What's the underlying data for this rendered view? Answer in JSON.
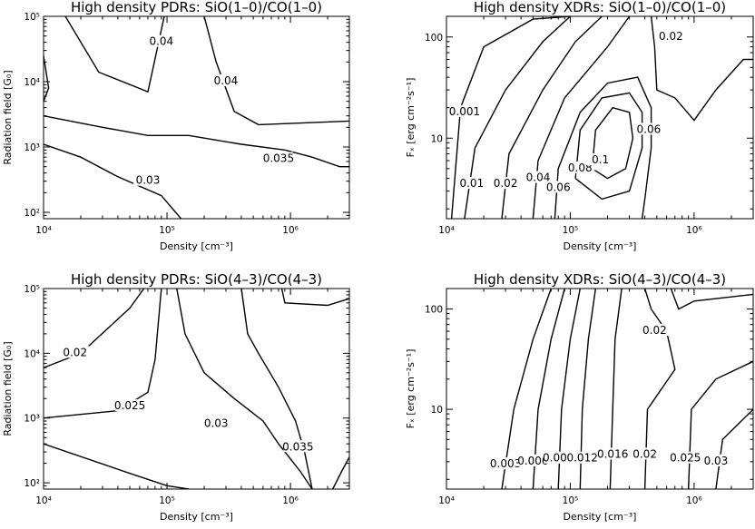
{
  "chart_data": [
    {
      "type": "contour",
      "title": "High density PDRs: SiO(1–0)/CO(1–0)",
      "xlabel": "Density [cm⁻³]",
      "ylabel": "Radiation field [G₀]",
      "xscale": "log",
      "yscale": "log",
      "xlim": [
        10000,
        3000000
      ],
      "ylim": [
        80,
        100000
      ],
      "x_ticks": [
        {
          "value": 10000,
          "label": "10⁴"
        },
        {
          "value": 100000,
          "label": "10⁵"
        },
        {
          "value": 1000000,
          "label": "10⁶"
        }
      ],
      "y_ticks": [
        {
          "value": 100,
          "label": "10²"
        },
        {
          "value": 1000,
          "label": "10³"
        },
        {
          "value": 10000,
          "label": "10⁴"
        },
        {
          "value": 100000,
          "label": "10⁵"
        }
      ],
      "contours": [
        {
          "level": "0.04",
          "label": "0.04",
          "points": [
            [
              15000,
              100000
            ],
            [
              28000,
              14000
            ],
            [
              70000,
              7000
            ],
            [
              95000,
              100000
            ]
          ],
          "label_at": [
            90000,
            40000
          ]
        },
        {
          "level": "0.04",
          "label": "0.04",
          "points": [
            [
              200000,
              100000
            ],
            [
              250000,
              20000
            ],
            [
              350000,
              3500
            ],
            [
              550000,
              2200
            ],
            [
              3000000,
              2500
            ]
          ],
          "label_at": [
            300000,
            10000
          ]
        },
        {
          "level": "0.035",
          "label": "0.035",
          "points": [
            [
              10000,
              3000
            ],
            [
              30000,
              2000
            ],
            [
              70000,
              1500
            ],
            [
              150000,
              1500
            ],
            [
              400000,
              1100
            ],
            [
              900000,
              900
            ],
            [
              1500000,
              700
            ],
            [
              2500000,
              500
            ],
            [
              3000000,
              500
            ]
          ],
          "label_at": [
            800000,
            650
          ]
        },
        {
          "level": "0.03",
          "label": "0.03",
          "points": [
            [
              10000,
              1100
            ],
            [
              20000,
              700
            ],
            [
              40000,
              350
            ],
            [
              90000,
              180
            ],
            [
              130000,
              80
            ]
          ],
          "label_at": [
            70000,
            300
          ]
        },
        {
          "level": "",
          "label": "",
          "points": [
            [
              10000,
              25000
            ],
            [
              11000,
              8000
            ],
            [
              10000,
              5000
            ]
          ]
        }
      ]
    },
    {
      "type": "contour",
      "title": "High density XDRs: SiO(1–0)/CO(1–0)",
      "xlabel": "Density [cm⁻³]",
      "ylabel": "Fₓ [erg cm⁻²s⁻¹]",
      "xscale": "log",
      "yscale": "log",
      "xlim": [
        10000,
        3000000
      ],
      "ylim": [
        1.6,
        160
      ],
      "x_ticks": [
        {
          "value": 10000,
          "label": "10⁴"
        },
        {
          "value": 100000,
          "label": "10⁵"
        },
        {
          "value": 1000000,
          "label": "10⁶"
        }
      ],
      "y_ticks": [
        {
          "value": 10,
          "label": "10"
        },
        {
          "value": 100,
          "label": "100"
        }
      ],
      "contours": [
        {
          "level": "0.001",
          "label": "0.001",
          "points": [
            [
              11000,
              1.6
            ],
            [
              13000,
              20
            ],
            [
              20000,
              80
            ],
            [
              50000,
              150
            ],
            [
              100000,
              160
            ]
          ],
          "label_at": [
            14000,
            18
          ]
        },
        {
          "level": "0.01",
          "label": "0.01",
          "points": [
            [
              14000,
              1.6
            ],
            [
              17000,
              8
            ],
            [
              30000,
              30
            ],
            [
              60000,
              90
            ],
            [
              100000,
              160
            ]
          ],
          "label_at": [
            16000,
            3.5
          ]
        },
        {
          "level": "0.02",
          "label": "0.02",
          "points": [
            [
              28000,
              1.6
            ],
            [
              32000,
              7
            ],
            [
              60000,
              30
            ],
            [
              110000,
              90
            ],
            [
              180000,
              160
            ]
          ],
          "label_at": [
            30000,
            3.5
          ]
        },
        {
          "level": "0.04",
          "label": "0.04",
          "points": [
            [
              50000,
              1.6
            ],
            [
              55000,
              6
            ],
            [
              90000,
              25
            ],
            [
              200000,
              80
            ],
            [
              300000,
              160
            ]
          ],
          "label_at": [
            55000,
            4
          ]
        },
        {
          "level": "0.06",
          "label": "0.06",
          "points": [
            [
              75000,
              1.6
            ],
            [
              80000,
              5
            ],
            [
              120000,
              18
            ],
            [
              200000,
              35
            ],
            [
              350000,
              40
            ],
            [
              450000,
              20
            ],
            [
              450000,
              8
            ],
            [
              400000,
              2.5
            ],
            [
              380000,
              1.6
            ]
          ],
          "label_at": [
            80000,
            3.2
          ]
        },
        {
          "level": "0.08",
          "label": "0.08",
          "points": [
            [
              110000,
              4
            ],
            [
              120000,
              12
            ],
            [
              180000,
              25
            ],
            [
              300000,
              28
            ],
            [
              380000,
              18
            ],
            [
              380000,
              8
            ],
            [
              300000,
              3
            ],
            [
              180000,
              2.5
            ],
            [
              110000,
              4
            ]
          ],
          "label_at": [
            120000,
            5
          ]
        },
        {
          "level": "0.1",
          "label": "0.1",
          "points": [
            [
              150000,
              5
            ],
            [
              160000,
              12
            ],
            [
              220000,
              20
            ],
            [
              300000,
              18
            ],
            [
              320000,
              10
            ],
            [
              280000,
              5
            ],
            [
              200000,
              4
            ],
            [
              150000,
              5
            ]
          ],
          "label_at": [
            175000,
            6
          ]
        },
        {
          "level": "0.06",
          "label": "0.06",
          "points": [],
          "label_at": [
            430000,
            12
          ]
        },
        {
          "level": "0.02",
          "label": "0.02",
          "points": [
            [
              450000,
              160
            ],
            [
              480000,
              80
            ],
            [
              500000,
              30
            ],
            [
              700000,
              25
            ],
            [
              1000000,
              15
            ],
            [
              1500000,
              30
            ],
            [
              2500000,
              60
            ],
            [
              3000000,
              60
            ]
          ],
          "label_at": [
            650000,
            100
          ]
        }
      ]
    },
    {
      "type": "contour",
      "title": "High density PDRs: SiO(4–3)/CO(4–3)",
      "xlabel": "Density [cm⁻³]",
      "ylabel": "Radiation field [G₀]",
      "xscale": "log",
      "yscale": "log",
      "xlim": [
        10000,
        3000000
      ],
      "ylim": [
        80,
        100000
      ],
      "x_ticks": [
        {
          "value": 10000,
          "label": "10⁴"
        },
        {
          "value": 100000,
          "label": "10⁵"
        },
        {
          "value": 1000000,
          "label": "10⁶"
        }
      ],
      "y_ticks": [
        {
          "value": 100,
          "label": "10²"
        },
        {
          "value": 1000,
          "label": "10³"
        },
        {
          "value": 10000,
          "label": "10⁴"
        },
        {
          "value": 100000,
          "label": "10⁵"
        }
      ],
      "contours": [
        {
          "level": "0.02",
          "label": "0.02",
          "points": [
            [
              10000,
              6000
            ],
            [
              20000,
              10000
            ],
            [
              50000,
              50000
            ],
            [
              65000,
              100000
            ]
          ],
          "label_at": [
            18000,
            10000
          ]
        },
        {
          "level": "0.025",
          "label": "0.025",
          "points": [
            [
              10000,
              1000
            ],
            [
              40000,
              1300
            ],
            [
              70000,
              2500
            ],
            [
              80000,
              8000
            ],
            [
              90000,
              100000
            ]
          ],
          "label_at": [
            50000,
            1500
          ]
        },
        {
          "level": "0.025",
          "label": "0.025",
          "points": [
            [
              10000,
              400
            ],
            [
              50000,
              140
            ],
            [
              100000,
              90
            ],
            [
              150000,
              80
            ]
          ]
        },
        {
          "level": "0.03",
          "label": "0.03",
          "points": [
            [
              120000,
              100000
            ],
            [
              140000,
              20000
            ],
            [
              200000,
              5000
            ],
            [
              350000,
              2000
            ],
            [
              600000,
              900
            ],
            [
              800000,
              400
            ],
            [
              1200000,
              150
            ],
            [
              1500000,
              80
            ]
          ],
          "label_at": [
            250000,
            800
          ]
        },
        {
          "level": "0.035",
          "label": "0.035",
          "points": [
            [
              400000,
              100000
            ],
            [
              450000,
              20000
            ],
            [
              550000,
              10000
            ],
            [
              800000,
              3000
            ],
            [
              1100000,
              900
            ],
            [
              1300000,
              300
            ],
            [
              1500000,
              80
            ]
          ],
          "label_at": [
            1150000,
            350
          ]
        },
        {
          "level": "",
          "label": "",
          "points": [
            [
              850000,
              100000
            ],
            [
              900000,
              60000
            ],
            [
              2000000,
              55000
            ],
            [
              3000000,
              70000
            ]
          ]
        },
        {
          "level": "",
          "label": "",
          "points": [
            [
              2200000,
              80
            ],
            [
              2600000,
              150
            ],
            [
              3000000,
              250
            ]
          ]
        }
      ]
    },
    {
      "type": "contour",
      "title": "High density XDRs: SiO(4–3)/CO(4–3)",
      "xlabel": "Density [cm⁻³]",
      "ylabel": "Fₓ [erg cm⁻²s⁻¹]",
      "xscale": "log",
      "yscale": "log",
      "xlim": [
        10000,
        3000000
      ],
      "ylim": [
        1.6,
        160
      ],
      "x_ticks": [
        {
          "value": 10000,
          "label": "10⁴"
        },
        {
          "value": 100000,
          "label": "10⁵"
        },
        {
          "value": 1000000,
          "label": "10⁶"
        }
      ],
      "y_ticks": [
        {
          "value": 10,
          "label": "10"
        },
        {
          "value": 100,
          "label": "100"
        }
      ],
      "contours": [
        {
          "level": "0.003",
          "label": "0.003",
          "points": [
            [
              28000,
              1.6
            ],
            [
              35000,
              10
            ],
            [
              50000,
              50
            ],
            [
              70000,
              160
            ]
          ],
          "label_at": [
            30000,
            2.8
          ]
        },
        {
          "level": "0.006",
          "label": "0.006",
          "points": [
            [
              50000,
              1.6
            ],
            [
              55000,
              10
            ],
            [
              70000,
              50
            ],
            [
              90000,
              160
            ]
          ],
          "label_at": [
            50000,
            3
          ]
        },
        {
          "level": "0.009",
          "label": "0.009",
          "points": [
            [
              80000,
              1.6
            ],
            [
              85000,
              10
            ],
            [
              100000,
              50
            ],
            [
              120000,
              160
            ]
          ],
          "label_at": [
            80000,
            3.2
          ]
        },
        {
          "level": "0.012",
          "label": "0.012",
          "points": [
            [
              120000,
              1.6
            ],
            [
              125000,
              10
            ],
            [
              140000,
              50
            ],
            [
              160000,
              160
            ]
          ],
          "label_at": [
            125000,
            3.2
          ]
        },
        {
          "level": "0.016",
          "label": "0.016",
          "points": [
            [
              210000,
              1.6
            ],
            [
              220000,
              10
            ],
            [
              230000,
              50
            ],
            [
              260000,
              160
            ]
          ],
          "label_at": [
            220000,
            3.5
          ]
        },
        {
          "level": "0.02",
          "label": "0.02",
          "points": [
            [
              400000,
              1.6
            ],
            [
              420000,
              10
            ],
            [
              700000,
              25
            ],
            [
              600000,
              60
            ],
            [
              450000,
              100
            ],
            [
              400000,
              160
            ]
          ],
          "label_at": [
            400000,
            3.5
          ]
        },
        {
          "level": "0.02",
          "label": "0.02",
          "points": [],
          "label_at": [
            480000,
            60
          ]
        },
        {
          "level": "0.025",
          "label": "0.025",
          "points": [
            [
              900000,
              1.6
            ],
            [
              950000,
              10
            ],
            [
              1500000,
              20
            ],
            [
              3000000,
              30
            ]
          ],
          "label_at": [
            850000,
            3.2
          ]
        },
        {
          "level": "0.03",
          "label": "0.03",
          "points": [
            [
              1500000,
              1.6
            ],
            [
              1700000,
              5
            ],
            [
              3000000,
              10
            ]
          ],
          "label_at": [
            1500000,
            3
          ]
        },
        {
          "level": "",
          "label": "",
          "points": [
            [
              650000,
              160
            ],
            [
              750000,
              100
            ],
            [
              1000000,
              120
            ],
            [
              3000000,
              140
            ]
          ]
        }
      ]
    }
  ]
}
